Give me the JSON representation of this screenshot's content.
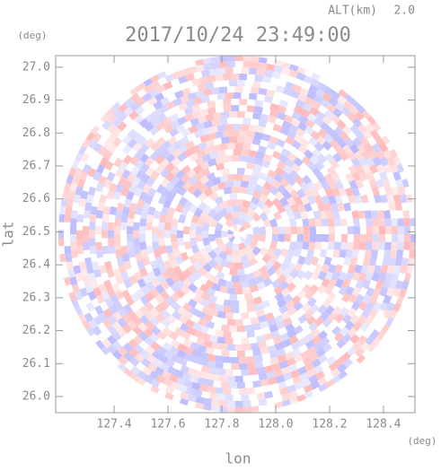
{
  "chart_data": {
    "type": "radar-ppi",
    "title": "2017/10/24 23:49:00",
    "altitude_label": "ALT(km)",
    "altitude": "2.0",
    "xlabel": "lon",
    "ylabel": "lat",
    "xunit": "(deg)",
    "yunit": "(deg)",
    "xlim": [
      127.183,
      128.517
    ],
    "ylim": [
      25.951,
      27.035
    ],
    "xticks": [
      127.4,
      127.6,
      127.8,
      {
        "value": 128,
        "label": "128.0"
      },
      128.2,
      128.4
    ],
    "yticks": [
      {
        "value": 26,
        "label": "26.0"
      },
      26.1,
      26.2,
      26.3,
      26.4,
      26.5,
      26.6,
      26.7,
      26.8,
      26.9,
      {
        "value": 27,
        "label": "27.0"
      }
    ]
  }
}
